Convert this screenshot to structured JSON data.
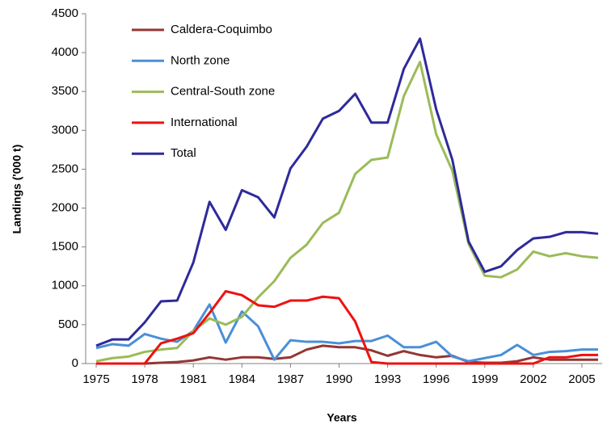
{
  "chart_data": {
    "type": "line",
    "x_label": "Years",
    "y_label": "Landings ('000 t)",
    "x": [
      1975,
      1976,
      1977,
      1978,
      1979,
      1980,
      1981,
      1982,
      1983,
      1984,
      1985,
      1986,
      1987,
      1988,
      1989,
      1990,
      1991,
      1992,
      1993,
      1994,
      1995,
      1996,
      1997,
      1998,
      1999,
      2000,
      2001,
      2002,
      2003,
      2004,
      2005,
      2006
    ],
    "xlim": [
      1975,
      2006
    ],
    "xticks": [
      1975,
      1978,
      1981,
      1984,
      1987,
      1990,
      1993,
      1996,
      1999,
      2002,
      2005
    ],
    "ylim": [
      0,
      4500
    ],
    "yticks": [
      0,
      500,
      1000,
      1500,
      2000,
      2500,
      3000,
      3500,
      4000,
      4500
    ],
    "legend": "top-left",
    "series": [
      {
        "name": "Caldera-Coquimbo",
        "color": "#943634",
        "values": [
          0,
          0,
          0,
          0,
          10,
          20,
          40,
          80,
          50,
          80,
          80,
          60,
          80,
          180,
          230,
          210,
          210,
          170,
          100,
          160,
          110,
          80,
          100,
          20,
          10,
          10,
          30,
          80,
          50,
          50,
          50,
          50
        ]
      },
      {
        "name": "North zone",
        "color": "#4a8fd8",
        "values": [
          200,
          250,
          230,
          380,
          320,
          280,
          420,
          760,
          270,
          670,
          480,
          50,
          300,
          280,
          280,
          260,
          290,
          290,
          360,
          210,
          210,
          280,
          90,
          30,
          70,
          110,
          240,
          110,
          150,
          160,
          180,
          180
        ]
      },
      {
        "name": "Central-South zone",
        "color": "#9bbb59",
        "values": [
          30,
          70,
          90,
          150,
          180,
          200,
          420,
          580,
          500,
          600,
          850,
          1060,
          1360,
          1530,
          1810,
          1940,
          2440,
          2620,
          2650,
          3440,
          3880,
          2950,
          2480,
          1540,
          1130,
          1110,
          1210,
          1440,
          1380,
          1420,
          1380,
          1360
        ]
      },
      {
        "name": "International",
        "color": "#ee1111",
        "values": [
          0,
          0,
          0,
          0,
          260,
          320,
          390,
          650,
          930,
          880,
          750,
          730,
          810,
          810,
          860,
          840,
          540,
          20,
          0,
          0,
          0,
          0,
          0,
          0,
          0,
          0,
          0,
          0,
          80,
          80,
          110,
          110
        ]
      },
      {
        "name": "Total",
        "color": "#2e2a9a",
        "values": [
          230,
          310,
          310,
          530,
          800,
          810,
          1300,
          2080,
          1720,
          2230,
          2140,
          1880,
          2510,
          2790,
          3150,
          3250,
          3470,
          3100,
          3100,
          3790,
          4180,
          3270,
          2620,
          1570,
          1180,
          1250,
          1460,
          1610,
          1630,
          1690,
          1690,
          1670
        ]
      }
    ]
  }
}
